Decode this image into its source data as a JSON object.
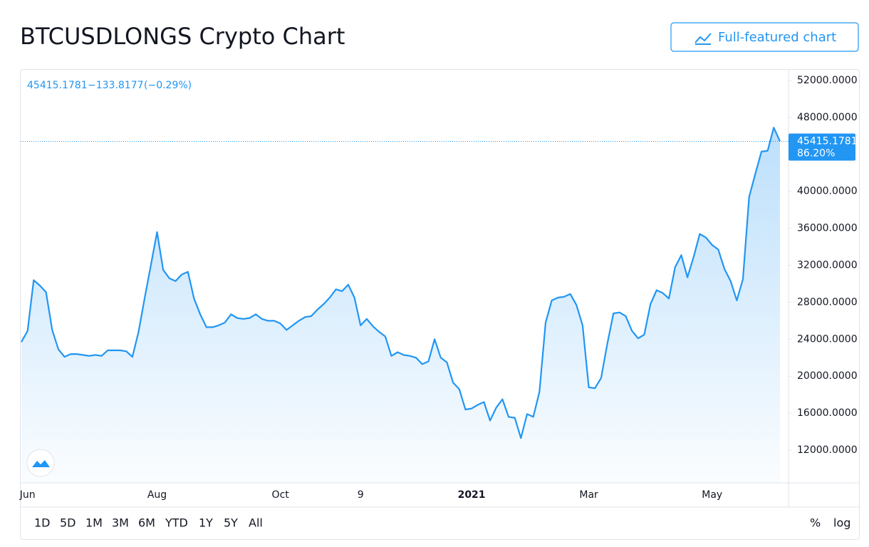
{
  "header": {
    "title": "BTCUSDLONGS Crypto Chart",
    "button": "Full-featured chart"
  },
  "legend": {
    "close": "45415.1781",
    "change": "−133.8177",
    "change_pct": "(−0.29%)"
  },
  "price_badge": {
    "price": "45415.1781",
    "pct": "86.20%"
  },
  "toolbar": {
    "ranges": [
      "1D",
      "5D",
      "1M",
      "3M",
      "6M",
      "YTD",
      "1Y",
      "5Y",
      "All"
    ],
    "percent": "%",
    "log": "log"
  },
  "chart_data": {
    "type": "area",
    "color": "#2196f3",
    "categories": [
      null,
      "Jun",
      null,
      null,
      null,
      null,
      null,
      null,
      null,
      null,
      null,
      null,
      null,
      null,
      null,
      null,
      null,
      null,
      null,
      null,
      null,
      null,
      "Aug",
      null,
      null,
      null,
      null,
      null,
      null,
      null,
      null,
      null,
      null,
      null,
      null,
      null,
      null,
      null,
      null,
      null,
      null,
      null,
      "Oct",
      null,
      null,
      null,
      null,
      null,
      null,
      null,
      null,
      null,
      null,
      null,
      null,
      "9",
      null,
      null,
      null,
      null,
      null,
      null,
      null,
      null,
      null,
      null,
      null,
      null,
      null,
      null,
      null,
      null,
      null,
      "2021",
      null,
      null,
      null,
      null,
      null,
      null,
      null,
      null,
      null,
      null,
      null,
      null,
      null,
      null,
      null,
      null,
      null,
      null,
      "Mar",
      null,
      null,
      null,
      null,
      null,
      null,
      null,
      null,
      null,
      null,
      null,
      null,
      null,
      null,
      null,
      null,
      null,
      null,
      null,
      "May",
      null,
      null,
      null,
      null,
      null,
      null,
      null,
      null,
      null,
      null,
      null
    ],
    "values": [
      23700,
      24900,
      30400,
      29800,
      29100,
      25000,
      22900,
      22100,
      22400,
      22400,
      22300,
      22200,
      22300,
      22200,
      22800,
      22800,
      22800,
      22700,
      22100,
      24800,
      28500,
      32000,
      35600,
      31500,
      30600,
      30300,
      31000,
      31300,
      28400,
      26700,
      25300,
      25300,
      25500,
      25800,
      26700,
      26300,
      26200,
      26300,
      26700,
      26200,
      26000,
      26000,
      25700,
      25000,
      25500,
      26000,
      26400,
      26500,
      27200,
      27800,
      28500,
      29400,
      29200,
      29900,
      28500,
      25500,
      26200,
      25400,
      24800,
      24300,
      22200,
      22600,
      22300,
      22200,
      22000,
      21300,
      21600,
      24000,
      22000,
      21500,
      19300,
      18600,
      16400,
      16500,
      16900,
      17200,
      15200,
      16600,
      17500,
      15600,
      15500,
      13300,
      15900,
      15600,
      18300,
      25800,
      28200,
      28500,
      28600,
      28900,
      27700,
      25500,
      18800,
      18700,
      19800,
      23500,
      26800,
      26900,
      26500,
      24900,
      24100,
      24500,
      27800,
      29300,
      29000,
      28400,
      31800,
      33100,
      30700,
      32900,
      35400,
      35000,
      34200,
      33700,
      31600,
      30300,
      28200,
      30500,
      39400,
      41900,
      44300,
      44400,
      46900,
      45415.1781
    ],
    "ylim": [
      8455,
      53156
    ],
    "yticks": [
      {
        "value": 12000,
        "label": "12000.0000"
      },
      {
        "value": 16000,
        "label": "16000.0000"
      },
      {
        "value": 20000,
        "label": "20000.0000"
      },
      {
        "value": 24000,
        "label": "24000.0000"
      },
      {
        "value": 28000,
        "label": "28000.0000"
      },
      {
        "value": 32000,
        "label": "32000.0000"
      },
      {
        "value": 36000,
        "label": "36000.0000"
      },
      {
        "value": 40000,
        "label": "40000.0000"
      },
      {
        "value": 48000,
        "label": "48000.0000"
      },
      {
        "value": 52000,
        "label": "52000.0000"
      }
    ]
  }
}
